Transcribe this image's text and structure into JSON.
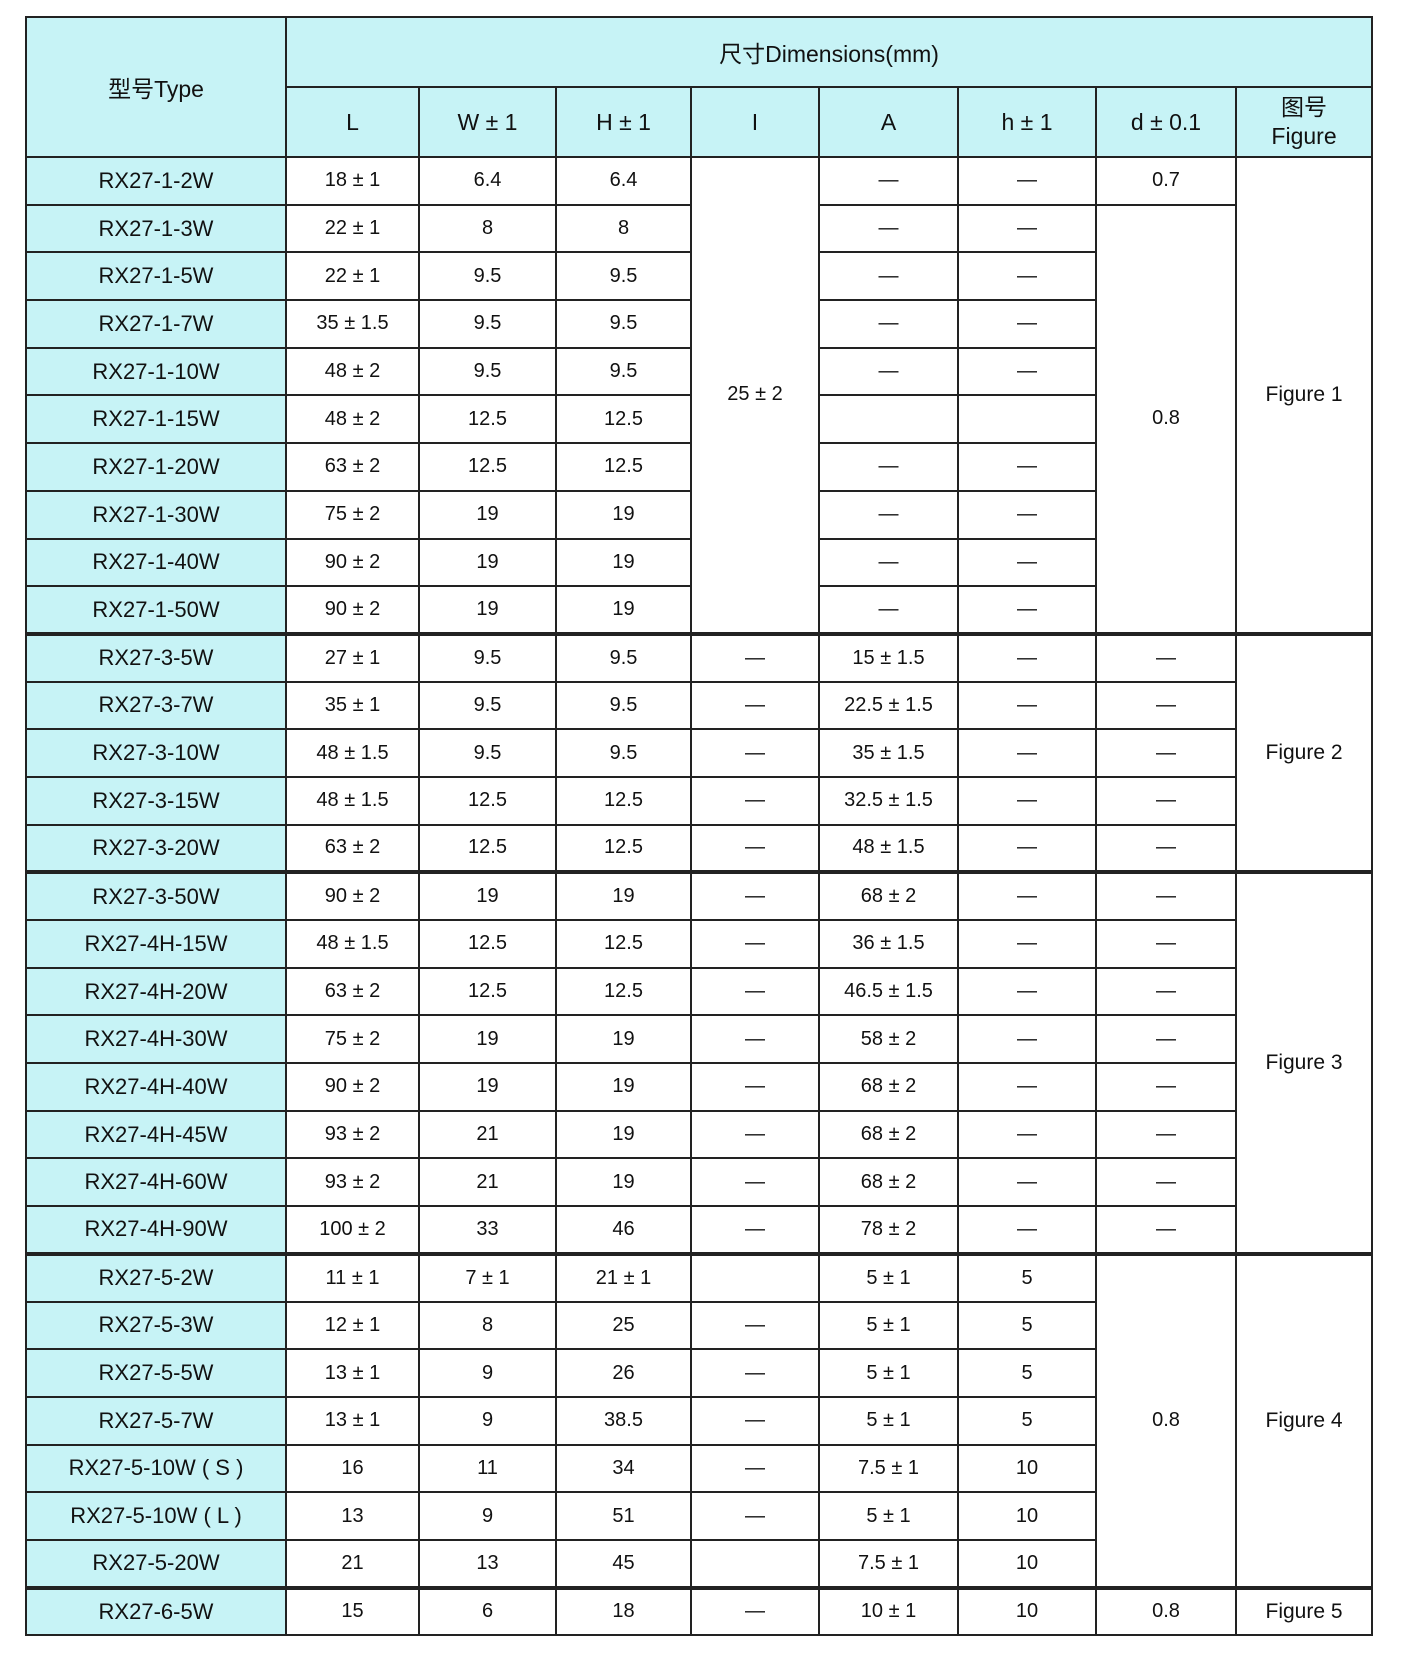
{
  "header": {
    "type_label": "型号Type",
    "dimensions_label": "尺寸Dimensions(mm)",
    "figure_cn": "图号",
    "figure_en": "Figure",
    "columns": [
      "L",
      "W ± 1",
      "H ± 1",
      "I",
      "A",
      "h ± 1",
      "d ± 0.1"
    ]
  },
  "colors": {
    "header_bg": "#c7f3f6",
    "border": "#222222",
    "cell_bg": "#ffffff"
  },
  "rows": [
    {
      "cells": [
        {
          "t": "RX27-1-2W",
          "c": "type"
        },
        {
          "t": "18 ± 1"
        },
        {
          "t": "6.4"
        },
        {
          "t": "6.4"
        },
        {
          "t": "25 ± 2",
          "rs": 10
        },
        {
          "t": "—"
        },
        {
          "t": "—"
        },
        {
          "t": "0.7"
        },
        {
          "t": "Figure 1",
          "rs": 10,
          "c": "fig"
        }
      ]
    },
    {
      "cells": [
        {
          "t": "RX27-1-3W",
          "c": "type"
        },
        {
          "t": "22 ± 1"
        },
        {
          "t": "8"
        },
        {
          "t": "8"
        },
        {
          "t": "—"
        },
        {
          "t": "—"
        },
        {
          "t": "0.8",
          "rs": 9
        }
      ]
    },
    {
      "cells": [
        {
          "t": "RX27-1-5W",
          "c": "type"
        },
        {
          "t": "22 ± 1"
        },
        {
          "t": "9.5"
        },
        {
          "t": "9.5"
        },
        {
          "t": "—"
        },
        {
          "t": "—"
        }
      ]
    },
    {
      "cells": [
        {
          "t": "RX27-1-7W",
          "c": "type"
        },
        {
          "t": "35 ± 1.5"
        },
        {
          "t": "9.5"
        },
        {
          "t": "9.5"
        },
        {
          "t": "—"
        },
        {
          "t": "—"
        }
      ]
    },
    {
      "cells": [
        {
          "t": "RX27-1-10W",
          "c": "type"
        },
        {
          "t": "48 ± 2"
        },
        {
          "t": "9.5"
        },
        {
          "t": "9.5"
        },
        {
          "t": "—"
        },
        {
          "t": "—"
        }
      ]
    },
    {
      "cells": [
        {
          "t": "RX27-1-15W",
          "c": "type"
        },
        {
          "t": "48 ± 2"
        },
        {
          "t": "12.5"
        },
        {
          "t": "12.5"
        },
        {
          "t": ""
        },
        {
          "t": ""
        }
      ]
    },
    {
      "cells": [
        {
          "t": "RX27-1-20W",
          "c": "type"
        },
        {
          "t": "63 ± 2"
        },
        {
          "t": "12.5"
        },
        {
          "t": "12.5"
        },
        {
          "t": "—"
        },
        {
          "t": "—"
        }
      ]
    },
    {
      "cells": [
        {
          "t": "RX27-1-30W",
          "c": "type"
        },
        {
          "t": "75 ± 2"
        },
        {
          "t": "19"
        },
        {
          "t": "19"
        },
        {
          "t": "—"
        },
        {
          "t": "—"
        }
      ]
    },
    {
      "cells": [
        {
          "t": "RX27-1-40W",
          "c": "type"
        },
        {
          "t": "90 ± 2"
        },
        {
          "t": "19"
        },
        {
          "t": "19"
        },
        {
          "t": "—"
        },
        {
          "t": "—"
        }
      ]
    },
    {
      "cells": [
        {
          "t": "RX27-1-50W",
          "c": "type"
        },
        {
          "t": "90 ± 2"
        },
        {
          "t": "19"
        },
        {
          "t": "19"
        },
        {
          "t": "—"
        },
        {
          "t": "—"
        }
      ]
    },
    {
      "gs": true,
      "cells": [
        {
          "t": "RX27-3-5W",
          "c": "type"
        },
        {
          "t": "27 ± 1"
        },
        {
          "t": "9.5"
        },
        {
          "t": "9.5"
        },
        {
          "t": "—"
        },
        {
          "t": "15 ± 1.5"
        },
        {
          "t": "—"
        },
        {
          "t": "—"
        },
        {
          "t": "Figure 2",
          "rs": 5,
          "c": "fig"
        }
      ]
    },
    {
      "cells": [
        {
          "t": "RX27-3-7W",
          "c": "type"
        },
        {
          "t": "35 ± 1"
        },
        {
          "t": "9.5"
        },
        {
          "t": "9.5"
        },
        {
          "t": "—"
        },
        {
          "t": "22.5 ± 1.5"
        },
        {
          "t": "—"
        },
        {
          "t": "—"
        }
      ]
    },
    {
      "cells": [
        {
          "t": "RX27-3-10W",
          "c": "type"
        },
        {
          "t": "48 ± 1.5"
        },
        {
          "t": "9.5"
        },
        {
          "t": "9.5"
        },
        {
          "t": "—"
        },
        {
          "t": "35 ± 1.5"
        },
        {
          "t": "—"
        },
        {
          "t": "—"
        }
      ]
    },
    {
      "cells": [
        {
          "t": "RX27-3-15W",
          "c": "type"
        },
        {
          "t": "48 ± 1.5"
        },
        {
          "t": "12.5"
        },
        {
          "t": "12.5"
        },
        {
          "t": "—"
        },
        {
          "t": "32.5 ± 1.5"
        },
        {
          "t": "—"
        },
        {
          "t": "—"
        }
      ]
    },
    {
      "cells": [
        {
          "t": "RX27-3-20W",
          "c": "type"
        },
        {
          "t": "63 ± 2"
        },
        {
          "t": "12.5"
        },
        {
          "t": "12.5"
        },
        {
          "t": "—"
        },
        {
          "t": "48 ± 1.5"
        },
        {
          "t": "—"
        },
        {
          "t": "—"
        }
      ]
    },
    {
      "gs": true,
      "cells": [
        {
          "t": "RX27-3-50W",
          "c": "type"
        },
        {
          "t": "90 ± 2"
        },
        {
          "t": "19"
        },
        {
          "t": "19"
        },
        {
          "t": "—"
        },
        {
          "t": "68 ± 2"
        },
        {
          "t": "—"
        },
        {
          "t": "—"
        },
        {
          "t": "Figure 3",
          "rs": 8,
          "c": "fig"
        }
      ]
    },
    {
      "cells": [
        {
          "t": "RX27-4H-15W",
          "c": "type"
        },
        {
          "t": "48 ± 1.5"
        },
        {
          "t": "12.5"
        },
        {
          "t": "12.5"
        },
        {
          "t": "—"
        },
        {
          "t": "36 ± 1.5"
        },
        {
          "t": "—"
        },
        {
          "t": "—"
        }
      ]
    },
    {
      "cells": [
        {
          "t": "RX27-4H-20W",
          "c": "type"
        },
        {
          "t": "63 ± 2"
        },
        {
          "t": "12.5"
        },
        {
          "t": "12.5"
        },
        {
          "t": "—"
        },
        {
          "t": "46.5 ± 1.5"
        },
        {
          "t": "—"
        },
        {
          "t": "—"
        }
      ]
    },
    {
      "cells": [
        {
          "t": "RX27-4H-30W",
          "c": "type"
        },
        {
          "t": "75 ± 2"
        },
        {
          "t": "19"
        },
        {
          "t": "19"
        },
        {
          "t": "—"
        },
        {
          "t": "58 ± 2"
        },
        {
          "t": "—"
        },
        {
          "t": "—"
        }
      ]
    },
    {
      "cells": [
        {
          "t": "RX27-4H-40W",
          "c": "type"
        },
        {
          "t": "90 ± 2"
        },
        {
          "t": "19"
        },
        {
          "t": "19"
        },
        {
          "t": "—"
        },
        {
          "t": "68 ± 2"
        },
        {
          "t": "—"
        },
        {
          "t": "—"
        }
      ]
    },
    {
      "cells": [
        {
          "t": "RX27-4H-45W",
          "c": "type"
        },
        {
          "t": "93 ± 2"
        },
        {
          "t": "21"
        },
        {
          "t": "19"
        },
        {
          "t": "—"
        },
        {
          "t": "68 ± 2"
        },
        {
          "t": "—"
        },
        {
          "t": "—"
        }
      ]
    },
    {
      "cells": [
        {
          "t": "RX27-4H-60W",
          "c": "type"
        },
        {
          "t": "93 ± 2"
        },
        {
          "t": "21"
        },
        {
          "t": "19"
        },
        {
          "t": "—"
        },
        {
          "t": "68 ± 2"
        },
        {
          "t": "—"
        },
        {
          "t": "—"
        }
      ]
    },
    {
      "cells": [
        {
          "t": "RX27-4H-90W",
          "c": "type"
        },
        {
          "t": "100 ± 2"
        },
        {
          "t": "33"
        },
        {
          "t": "46"
        },
        {
          "t": "—"
        },
        {
          "t": "78 ± 2"
        },
        {
          "t": "—"
        },
        {
          "t": "—"
        }
      ]
    },
    {
      "gs": true,
      "cells": [
        {
          "t": "RX27-5-2W",
          "c": "type"
        },
        {
          "t": "11 ± 1"
        },
        {
          "t": "7 ± 1"
        },
        {
          "t": "21 ± 1"
        },
        {
          "t": ""
        },
        {
          "t": "5 ± 1"
        },
        {
          "t": "5"
        },
        {
          "t": "0.8",
          "rs": 7
        },
        {
          "t": "Figure 4",
          "rs": 7,
          "c": "fig"
        }
      ]
    },
    {
      "cells": [
        {
          "t": "RX27-5-3W",
          "c": "type"
        },
        {
          "t": "12 ± 1"
        },
        {
          "t": "8"
        },
        {
          "t": "25"
        },
        {
          "t": "—"
        },
        {
          "t": "5 ± 1"
        },
        {
          "t": "5"
        }
      ]
    },
    {
      "cells": [
        {
          "t": "RX27-5-5W",
          "c": "type"
        },
        {
          "t": "13 ± 1"
        },
        {
          "t": "9"
        },
        {
          "t": "26"
        },
        {
          "t": "—"
        },
        {
          "t": "5 ± 1"
        },
        {
          "t": "5"
        }
      ]
    },
    {
      "cells": [
        {
          "t": "RX27-5-7W",
          "c": "type"
        },
        {
          "t": "13 ± 1"
        },
        {
          "t": "9"
        },
        {
          "t": "38.5"
        },
        {
          "t": "—"
        },
        {
          "t": "5 ± 1"
        },
        {
          "t": "5"
        }
      ]
    },
    {
      "cells": [
        {
          "t": "RX27-5-10W ( S )",
          "c": "type"
        },
        {
          "t": "16"
        },
        {
          "t": "11"
        },
        {
          "t": "34"
        },
        {
          "t": "—"
        },
        {
          "t": "7.5 ± 1"
        },
        {
          "t": "10"
        }
      ]
    },
    {
      "cells": [
        {
          "t": "RX27-5-10W ( L )",
          "c": "type"
        },
        {
          "t": "13"
        },
        {
          "t": "9"
        },
        {
          "t": "51"
        },
        {
          "t": "—"
        },
        {
          "t": "5 ± 1"
        },
        {
          "t": "10"
        }
      ]
    },
    {
      "cells": [
        {
          "t": "RX27-5-20W",
          "c": "type"
        },
        {
          "t": "21"
        },
        {
          "t": "13"
        },
        {
          "t": "45"
        },
        {
          "t": ""
        },
        {
          "t": "7.5 ± 1"
        },
        {
          "t": "10"
        }
      ]
    },
    {
      "gs": true,
      "cells": [
        {
          "t": "RX27-6-5W",
          "c": "type"
        },
        {
          "t": "15"
        },
        {
          "t": "6"
        },
        {
          "t": "18"
        },
        {
          "t": "—"
        },
        {
          "t": "10 ± 1"
        },
        {
          "t": "10"
        },
        {
          "t": "0.8"
        },
        {
          "t": "Figure 5",
          "c": "fig"
        }
      ]
    }
  ]
}
